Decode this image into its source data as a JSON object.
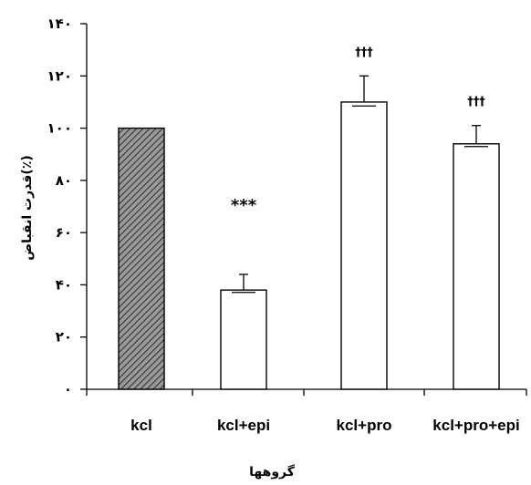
{
  "chart_data": {
    "type": "bar",
    "categories": [
      "kcl",
      "kcl+epi",
      "kcl+pro",
      "kcl+pro+epi"
    ],
    "values": [
      100,
      38,
      110,
      94
    ],
    "errors": [
      0,
      6,
      10,
      7
    ],
    "annotations": [
      "",
      "***",
      "†††",
      "†††"
    ],
    "bar_patterns": [
      "hatched",
      "plain",
      "plain",
      "plain"
    ],
    "ylabel": "قدرت انقباض(٪)",
    "xlabel": "گروهها",
    "ylim": [
      0,
      140
    ],
    "yticks": [
      0,
      20,
      40,
      60,
      80,
      100,
      120,
      140
    ],
    "ytick_labels": [
      "٠",
      "٢٠",
      "۴٠",
      "۶٠",
      "٨٠",
      "١٠٠",
      "١٢٠",
      "١۴٠"
    ],
    "grid": false,
    "colors": {
      "hatched_fill": "#9a9a9a",
      "hatch_line": "#3a3a3a",
      "bar_fill": "#ffffff",
      "stroke": "#000000"
    }
  }
}
